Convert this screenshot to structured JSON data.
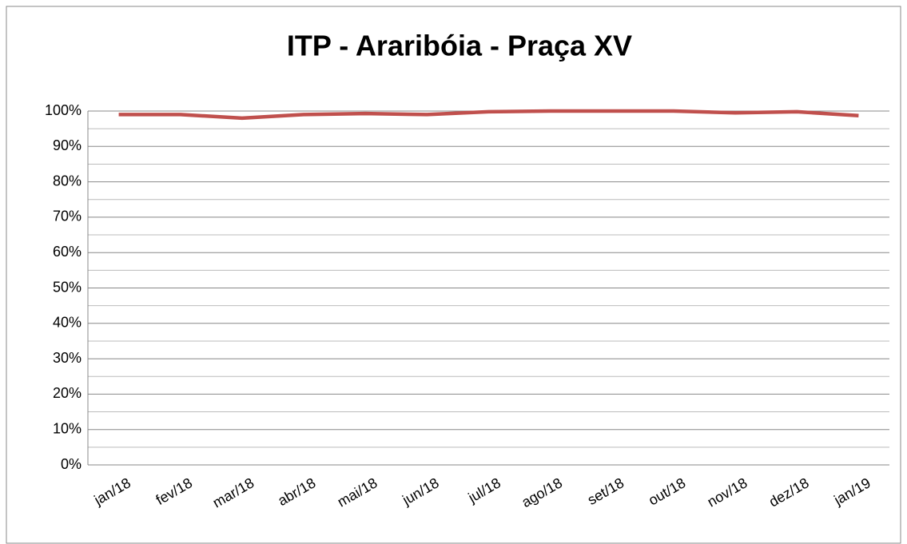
{
  "chart_data": {
    "type": "line",
    "title": "ITP - Araribóia - Praça XV",
    "categories": [
      "jan/18",
      "fev/18",
      "mar/18",
      "abr/18",
      "mai/18",
      "jun/18",
      "jul/18",
      "ago/18",
      "set/18",
      "out/18",
      "nov/18",
      "dez/18",
      "jan/19"
    ],
    "series": [
      {
        "name": "ITP",
        "color": "#c0504d",
        "values": [
          99,
          99,
          98,
          99,
          99.3,
          99,
          99.8,
          100,
          100,
          100,
          99.5,
          99.8,
          98.7
        ]
      }
    ],
    "ylim": [
      0,
      100
    ],
    "yticks": [
      {
        "value": 0,
        "label": "0%"
      },
      {
        "value": 10,
        "label": "10%"
      },
      {
        "value": 20,
        "label": "20%"
      },
      {
        "value": 30,
        "label": "30%"
      },
      {
        "value": 40,
        "label": "40%"
      },
      {
        "value": 50,
        "label": "50%"
      },
      {
        "value": 60,
        "label": "60%"
      },
      {
        "value": 70,
        "label": "70%"
      },
      {
        "value": 80,
        "label": "80%"
      },
      {
        "value": 90,
        "label": "90%"
      },
      {
        "value": 100,
        "label": "100%"
      }
    ],
    "minor_yticks": [
      5,
      15,
      25,
      35,
      45,
      55,
      65,
      75,
      85,
      95
    ],
    "grid": true
  }
}
